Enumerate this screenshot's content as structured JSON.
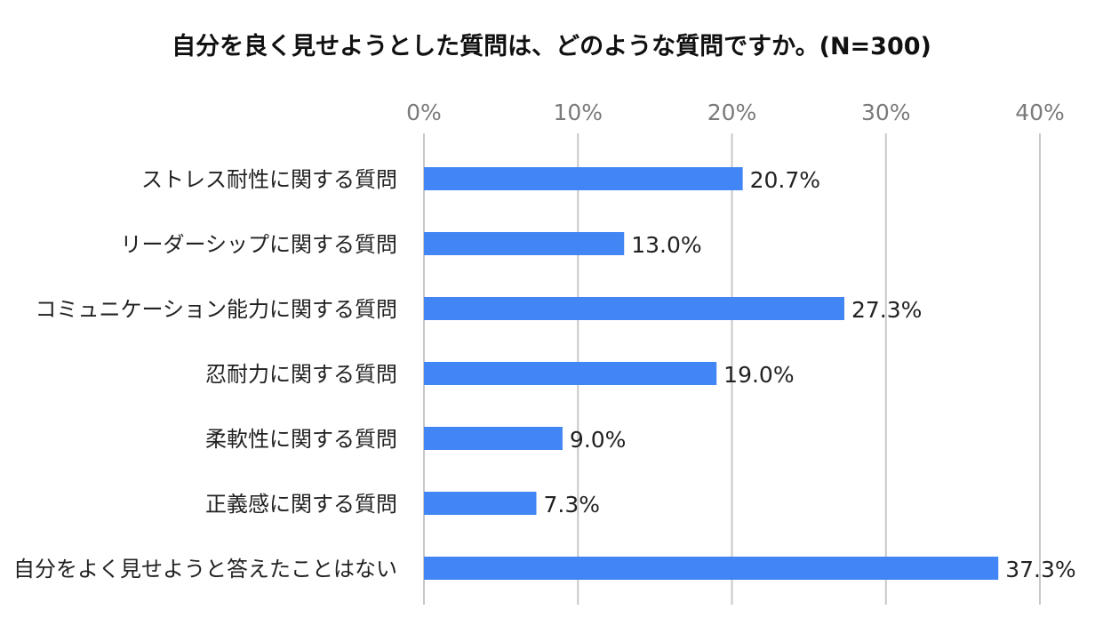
{
  "chart_data": {
    "type": "bar",
    "orientation": "horizontal",
    "title": "自分を良く見せようとした質問は、どのような質問ですか。(N=300)",
    "categories": [
      "ストレス耐性に関する質問",
      "リーダーシップに関する質問",
      "コミュニケーション能力に関する質問",
      "忍耐力に関する質問",
      "柔軟性に関する質問",
      "正義感に関する質問",
      "自分をよく見せようと答えたことはない"
    ],
    "values": [
      20.7,
      13.0,
      27.3,
      19.0,
      9.0,
      7.3,
      37.3
    ],
    "data_labels": [
      "20.7%",
      "13.0%",
      "27.3%",
      "19.0%",
      "9.0%",
      "7.3%",
      "37.3%"
    ],
    "xlim": [
      0,
      40
    ],
    "xticks": [
      0,
      10,
      20,
      30,
      40
    ],
    "xtick_labels": [
      "0%",
      "10%",
      "20%",
      "30%",
      "40%"
    ],
    "axis_position": "top",
    "grid": true,
    "bar_color": "#4285f4",
    "grid_color": "#c8c8c8"
  }
}
